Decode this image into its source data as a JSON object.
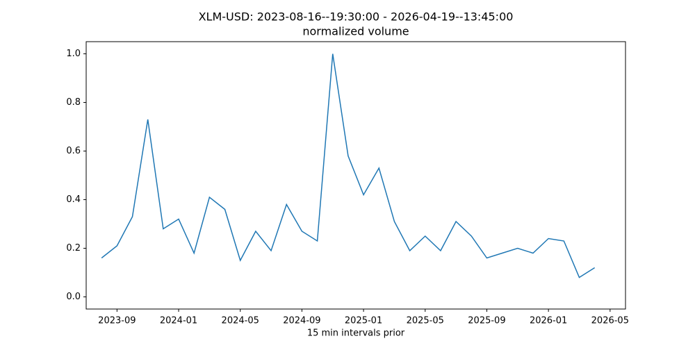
{
  "chart_data": {
    "type": "line",
    "title": "XLM-USD: 2023-08-16--19:30:00 - 2026-04-19--13:45:00",
    "subtitle": "normalized volume",
    "x_label": "15 min intervals prior",
    "x": [
      "2023-08",
      "2023-09",
      "2023-10",
      "2023-11",
      "2023-12",
      "2024-01",
      "2024-02",
      "2024-03",
      "2024-04",
      "2024-05",
      "2024-06",
      "2024-07",
      "2024-08",
      "2024-09",
      "2024-10",
      "2024-11",
      "2024-12",
      "2025-01",
      "2025-02",
      "2025-03",
      "2025-04",
      "2025-05",
      "2025-06",
      "2025-07",
      "2025-08",
      "2025-09",
      "2025-10",
      "2025-11",
      "2025-12",
      "2026-01",
      "2026-02",
      "2026-03",
      "2026-04"
    ],
    "series": [
      {
        "color": "#1f77b4",
        "values": [
          0.16,
          0.21,
          0.33,
          0.73,
          0.28,
          0.32,
          0.18,
          0.41,
          0.36,
          0.15,
          0.27,
          0.19,
          0.38,
          0.27,
          0.23,
          1.0,
          0.58,
          0.42,
          0.53,
          0.31,
          0.19,
          0.25,
          0.19,
          0.31,
          0.25,
          0.16,
          0.18,
          0.2,
          0.18,
          0.24,
          0.23,
          0.08,
          0.12
        ]
      }
    ],
    "xlim": [
      "2023-07",
      "2026-06"
    ],
    "xticks": [
      "2023-09",
      "2024-01",
      "2024-05",
      "2024-09",
      "2025-01",
      "2025-05",
      "2025-09",
      "2026-01",
      "2026-05"
    ],
    "ylim": [
      -0.05,
      1.05
    ],
    "yticks": [
      {
        "value": 0,
        "label": "0.0"
      },
      {
        "value": 0.2,
        "label": "0.2"
      },
      {
        "value": 0.4,
        "label": "0.4"
      },
      {
        "value": 0.6,
        "label": "0.6"
      },
      {
        "value": 0.8,
        "label": "0.8"
      },
      {
        "value": 1,
        "label": "1.0"
      }
    ],
    "grid": false
  }
}
